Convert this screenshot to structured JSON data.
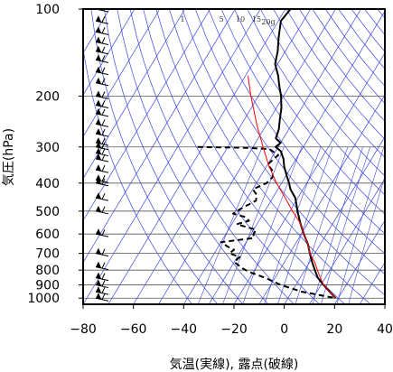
{
  "chart_data": {
    "type": "line",
    "diagram": "skew-T log-p",
    "xlabel": "気温(実線), 露点(破線)",
    "ylabel": "気圧(hPa)",
    "x_ticks": [
      -80,
      -60,
      -40,
      -20,
      0,
      20,
      40
    ],
    "y_ticks": [
      100,
      200,
      300,
      400,
      500,
      600,
      700,
      800,
      900,
      1000
    ],
    "xlim": [
      -80,
      40
    ],
    "ylim": [
      1050,
      100
    ],
    "y_scale": "log",
    "mixing_ratio_labels": [
      "1",
      "5",
      "10",
      "15",
      "20g"
    ],
    "grid": true,
    "series": [
      {
        "style": "solid",
        "color": "#000000",
        "points": [
          [
            100,
            -68
          ],
          [
            110,
            -69
          ],
          [
            125,
            -66
          ],
          [
            140,
            -63
          ],
          [
            155,
            -61
          ],
          [
            170,
            -57
          ],
          [
            185,
            -54
          ],
          [
            200,
            -51
          ],
          [
            220,
            -48
          ],
          [
            240,
            -46
          ],
          [
            260,
            -44
          ],
          [
            280,
            -43
          ],
          [
            290,
            -40
          ],
          [
            300,
            -41
          ],
          [
            310,
            -38
          ],
          [
            330,
            -35
          ],
          [
            350,
            -33
          ],
          [
            375,
            -30
          ],
          [
            400,
            -27
          ],
          [
            420,
            -25
          ],
          [
            450,
            -21
          ],
          [
            500,
            -17
          ],
          [
            550,
            -13
          ],
          [
            600,
            -9
          ],
          [
            650,
            -5
          ],
          [
            700,
            -2
          ],
          [
            750,
            1
          ],
          [
            800,
            4
          ],
          [
            850,
            7
          ],
          [
            900,
            11
          ],
          [
            950,
            15
          ],
          [
            1000,
            19
          ]
        ]
      },
      {
        "style": "dashed",
        "color": "#000000",
        "points": [
          [
            300,
            -72
          ],
          [
            302,
            -52
          ],
          [
            305,
            -43
          ],
          [
            320,
            -38
          ],
          [
            345,
            -40
          ],
          [
            360,
            -37
          ],
          [
            380,
            -35
          ],
          [
            400,
            -36
          ],
          [
            420,
            -40
          ],
          [
            440,
            -37
          ],
          [
            460,
            -36
          ],
          [
            490,
            -40
          ],
          [
            510,
            -42
          ],
          [
            525,
            -36
          ],
          [
            540,
            -34
          ],
          [
            555,
            -38
          ],
          [
            580,
            -29
          ],
          [
            600,
            -29
          ],
          [
            620,
            -28
          ],
          [
            640,
            -40
          ],
          [
            665,
            -36
          ],
          [
            680,
            -33
          ],
          [
            700,
            -34
          ],
          [
            720,
            -29
          ],
          [
            750,
            -30
          ],
          [
            790,
            -25
          ],
          [
            810,
            -22
          ],
          [
            850,
            -14
          ],
          [
            900,
            -6
          ],
          [
            950,
            4
          ],
          [
            1000,
            19
          ]
        ]
      },
      {
        "style": "solid",
        "color": "#ff0000",
        "points": [
          [
            170,
            -69
          ],
          [
            200,
            -63
          ],
          [
            250,
            -54
          ],
          [
            300,
            -46
          ],
          [
            350,
            -39
          ],
          [
            400,
            -32
          ],
          [
            450,
            -25
          ],
          [
            500,
            -19
          ],
          [
            550,
            -13
          ],
          [
            600,
            -9
          ],
          [
            650,
            -5
          ],
          [
            700,
            -2
          ],
          [
            750,
            2
          ],
          [
            800,
            5
          ],
          [
            850,
            8
          ],
          [
            900,
            11
          ],
          [
            950,
            15
          ],
          [
            1000,
            19
          ]
        ]
      }
    ],
    "wind_barbs_at": [
      100,
      110,
      120,
      130,
      140,
      150,
      165,
      180,
      200,
      215,
      230,
      250,
      270,
      290,
      300,
      315,
      330,
      360,
      390,
      400,
      450,
      500,
      600,
      700,
      780,
      850,
      900,
      950,
      1000
    ]
  }
}
